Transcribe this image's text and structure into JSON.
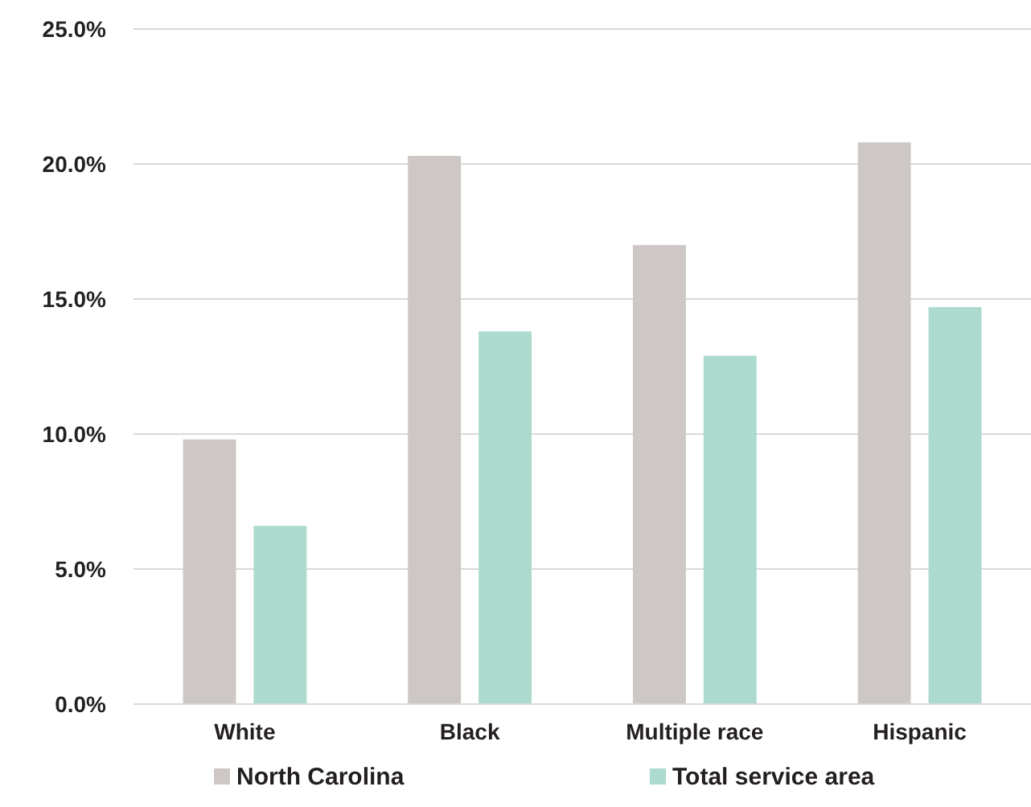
{
  "chart_data": {
    "type": "bar",
    "categories": [
      "White",
      "Black",
      "Multiple race",
      "Hispanic"
    ],
    "series": [
      {
        "name": "North Carolina",
        "color": "#cdc8c5",
        "values": [
          9.8,
          20.3,
          17.0,
          20.8
        ]
      },
      {
        "name": "Total service area",
        "color": "#acdacf",
        "values": [
          6.6,
          13.8,
          12.9,
          14.7
        ]
      }
    ],
    "ylim": [
      0,
      25
    ],
    "yticks": [
      {
        "value": 0,
        "label": "0.0%"
      },
      {
        "value": 5,
        "label": "5.0%"
      },
      {
        "value": 10,
        "label": "10.0%"
      },
      {
        "value": 15,
        "label": "15.0%"
      },
      {
        "value": 20,
        "label": "20.0%"
      },
      {
        "value": 25,
        "label": "25.0%"
      }
    ],
    "grid": "y",
    "legend": "bottom"
  }
}
